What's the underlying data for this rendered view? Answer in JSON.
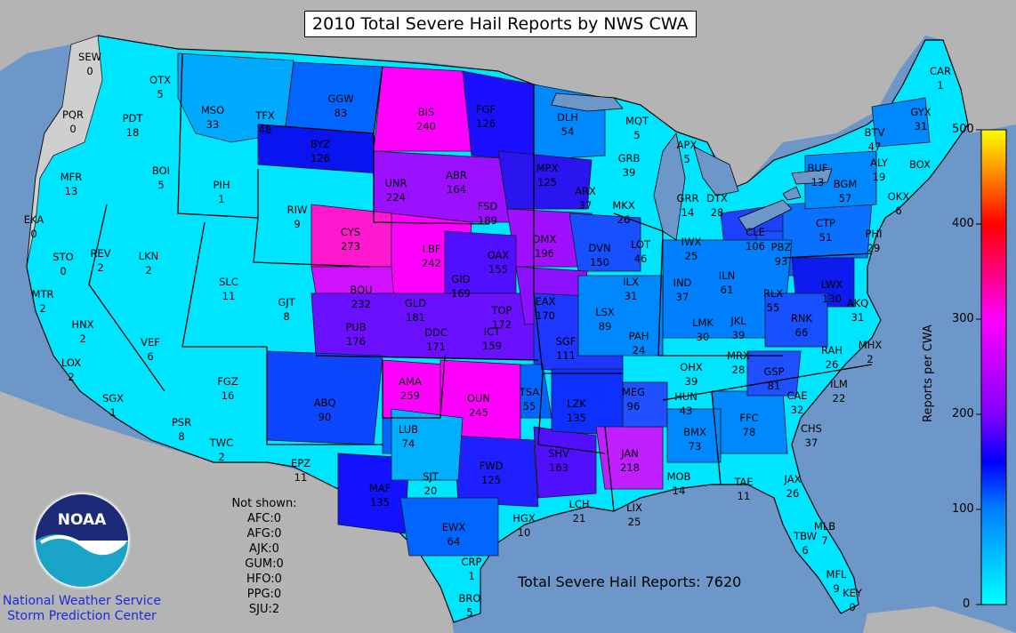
{
  "title": "2010 Total Severe Hail Reports by NWS CWA",
  "total_label": "Total Severe Hail Reports: 7620",
  "not_shown": {
    "heading": "Not shown:",
    "items": [
      "AFC:0",
      "AFG:0",
      "AJK:0",
      "GUM:0",
      "HFO:0",
      "PPG:0",
      "SJU:2"
    ]
  },
  "organization": {
    "logo_text": "NOAA",
    "line1": "National Weather Service",
    "line2": "Storm Prediction Center"
  },
  "colorbar": {
    "label": "Reports per CWA",
    "ticks": [
      "0",
      "100",
      "200",
      "300",
      "400",
      "500"
    ],
    "range": [
      0,
      500
    ],
    "stops": [
      "#00ffff",
      "#0080ff",
      "#0000ff",
      "#8000ff",
      "#ff00ff",
      "#ff0000",
      "#ff8000",
      "#ffff00"
    ]
  },
  "colors": {
    "ocean": "#6e97c9",
    "land_outside": "#b4b4b4",
    "no_data": "#cccccc"
  },
  "cwas": [
    {
      "code": "SEW",
      "value": 0
    },
    {
      "code": "OTX",
      "value": 5
    },
    {
      "code": "PQR",
      "value": 0
    },
    {
      "code": "PDT",
      "value": 18
    },
    {
      "code": "MSO",
      "value": 33
    },
    {
      "code": "TFX",
      "value": 48
    },
    {
      "code": "GGW",
      "value": 83
    },
    {
      "code": "BYZ",
      "value": 126
    },
    {
      "code": "BIS",
      "value": 240
    },
    {
      "code": "FGF",
      "value": 126
    },
    {
      "code": "DLH",
      "value": 54
    },
    {
      "code": "MQT",
      "value": 5
    },
    {
      "code": "APX",
      "value": 5
    },
    {
      "code": "CAR",
      "value": 1
    },
    {
      "code": "GYX",
      "value": 31
    },
    {
      "code": "BTV",
      "value": 47
    },
    {
      "code": "ALY",
      "value": 19
    },
    {
      "code": "BOX",
      "value": ""
    },
    {
      "code": "OKX",
      "value": 6
    },
    {
      "code": "BUF",
      "value": 13
    },
    {
      "code": "BGM",
      "value": 57
    },
    {
      "code": "CTP",
      "value": 51
    },
    {
      "code": "PHI",
      "value": 29
    },
    {
      "code": "MFR",
      "value": 13
    },
    {
      "code": "BOI",
      "value": 5
    },
    {
      "code": "PIH",
      "value": 1
    },
    {
      "code": "RIW",
      "value": 9
    },
    {
      "code": "UNR",
      "value": 224
    },
    {
      "code": "ABR",
      "value": 164
    },
    {
      "code": "FSD",
      "value": 189
    },
    {
      "code": "MPX",
      "value": 125
    },
    {
      "code": "GRB",
      "value": 39
    },
    {
      "code": "ARX",
      "value": 37
    },
    {
      "code": "MKX",
      "value": 26
    },
    {
      "code": "GRR",
      "value": 14
    },
    {
      "code": "DTX",
      "value": 28
    },
    {
      "code": "CLE",
      "value": 106
    },
    {
      "code": "PBZ",
      "value": 93
    },
    {
      "code": "LWX",
      "value": 130
    },
    {
      "code": "AKQ",
      "value": 31
    },
    {
      "code": "EKA",
      "value": 0
    },
    {
      "code": "REV",
      "value": 2
    },
    {
      "code": "LKN",
      "value": 2
    },
    {
      "code": "SLC",
      "value": 11
    },
    {
      "code": "CYS",
      "value": 273
    },
    {
      "code": "LBF",
      "value": 242
    },
    {
      "code": "OAX",
      "value": 155
    },
    {
      "code": "DMX",
      "value": 196
    },
    {
      "code": "DVN",
      "value": 150
    },
    {
      "code": "LOT",
      "value": 46
    },
    {
      "code": "IWX",
      "value": 25
    },
    {
      "code": "ILN",
      "value": 61
    },
    {
      "code": "RLX",
      "value": 55
    },
    {
      "code": "RNK",
      "value": 66
    },
    {
      "code": "STO",
      "value": 0
    },
    {
      "code": "MTR",
      "value": 2
    },
    {
      "code": "GJT",
      "value": 8
    },
    {
      "code": "BOU",
      "value": 232
    },
    {
      "code": "GID",
      "value": 169
    },
    {
      "code": "GLD",
      "value": 181
    },
    {
      "code": "PUB",
      "value": 176
    },
    {
      "code": "DDC",
      "value": 171
    },
    {
      "code": "TOP",
      "value": 172
    },
    {
      "code": "ICT",
      "value": 159
    },
    {
      "code": "EAX",
      "value": 170
    },
    {
      "code": "ILX",
      "value": 31
    },
    {
      "code": "IND",
      "value": 37
    },
    {
      "code": "LSX",
      "value": 89
    },
    {
      "code": "LMK",
      "value": 30
    },
    {
      "code": "JKL",
      "value": 39
    },
    {
      "code": "RAH",
      "value": 26
    },
    {
      "code": "MHX",
      "value": 2
    },
    {
      "code": "HNX",
      "value": 2
    },
    {
      "code": "VEF",
      "value": 6
    },
    {
      "code": "LOX",
      "value": 2
    },
    {
      "code": "SGX",
      "value": 1
    },
    {
      "code": "FGZ",
      "value": 16
    },
    {
      "code": "PSR",
      "value": 8
    },
    {
      "code": "TWC",
      "value": 2
    },
    {
      "code": "ABQ",
      "value": 90
    },
    {
      "code": "EPZ",
      "value": 11
    },
    {
      "code": "AMA",
      "value": 259
    },
    {
      "code": "OUN",
      "value": 245
    },
    {
      "code": "TSA",
      "value": 55
    },
    {
      "code": "SGF",
      "value": 111
    },
    {
      "code": "PAH",
      "value": 24
    },
    {
      "code": "OHX",
      "value": 39
    },
    {
      "code": "MRX",
      "value": 28
    },
    {
      "code": "GSP",
      "value": 81
    },
    {
      "code": "ILM",
      "value": 22
    },
    {
      "code": "CAE",
      "value": 32
    },
    {
      "code": "LUB",
      "value": 74
    },
    {
      "code": "MAF",
      "value": 135
    },
    {
      "code": "SJT",
      "value": 20
    },
    {
      "code": "FWD",
      "value": 125
    },
    {
      "code": "SHV",
      "value": 163
    },
    {
      "code": "LZK",
      "value": 135
    },
    {
      "code": "MEG",
      "value": 96
    },
    {
      "code": "HUN",
      "value": 43
    },
    {
      "code": "BMX",
      "value": 73
    },
    {
      "code": "FFC",
      "value": 78
    },
    {
      "code": "CHS",
      "value": 37
    },
    {
      "code": "JAN",
      "value": 218
    },
    {
      "code": "MOB",
      "value": 14
    },
    {
      "code": "TAE",
      "value": 11
    },
    {
      "code": "JAX",
      "value": 26
    },
    {
      "code": "EWX",
      "value": 64
    },
    {
      "code": "HGX",
      "value": 10
    },
    {
      "code": "LCH",
      "value": 21
    },
    {
      "code": "LIX",
      "value": 25
    },
    {
      "code": "CRP",
      "value": 1
    },
    {
      "code": "BRO",
      "value": 5
    },
    {
      "code": "MLB",
      "value": 7
    },
    {
      "code": "TBW",
      "value": 6
    },
    {
      "code": "MFL",
      "value": 9
    },
    {
      "code": "KEY",
      "value": 0
    }
  ]
}
